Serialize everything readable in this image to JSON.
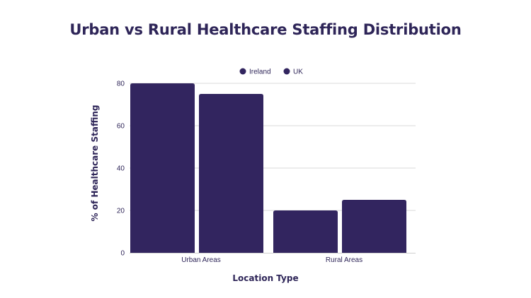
{
  "chart_data": {
    "type": "bar",
    "title": "Urban vs Rural Healthcare Staffing Distribution",
    "xlabel": "Location Type",
    "ylabel": "% of Healthcare Staffing",
    "categories": [
      "Urban Areas",
      "Rural Areas"
    ],
    "series": [
      {
        "name": "Ireland",
        "values": [
          80,
          20
        ],
        "color": "#32255f"
      },
      {
        "name": "UK",
        "values": [
          75,
          25
        ],
        "color": "#32255f"
      }
    ],
    "ylim": [
      0,
      80
    ],
    "yticks": [
      0,
      20,
      40,
      60,
      80
    ],
    "grid": true,
    "legend": "top"
  }
}
